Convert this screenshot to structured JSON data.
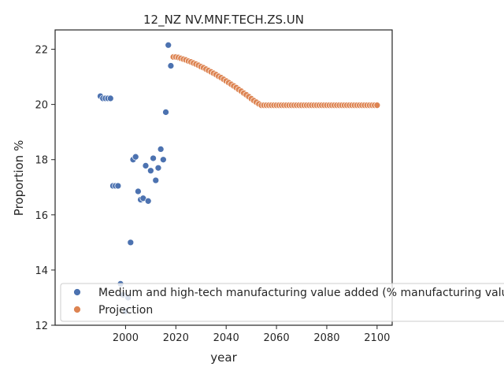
{
  "chart_data": {
    "type": "scatter",
    "title": "12_NZ NV.MNF.TECH.ZS.UN",
    "xlabel": "year",
    "ylabel": "Proportion %",
    "xlim": [
      1972,
      2106
    ],
    "ylim": [
      12,
      22.7
    ],
    "xticks": [
      "2000",
      "2020",
      "2040",
      "2060",
      "2080",
      "2100"
    ],
    "yticks": [
      "12",
      "14",
      "16",
      "18",
      "20",
      "22"
    ],
    "grid": false,
    "legend_position": "lower-right",
    "series": [
      {
        "name": "Medium and high-tech manufacturing value added (% manufacturing value added)",
        "color": "#4c72b0",
        "x": [
          1990,
          1991,
          1992,
          1993,
          1994,
          1995,
          1996,
          1997,
          1998,
          1999,
          2000,
          2001,
          2002,
          2003,
          2004,
          2005,
          2006,
          2007,
          2008,
          2009,
          2010,
          2011,
          2012,
          2013,
          2014,
          2015,
          2016,
          2017,
          2018,
          2019
        ],
        "y": [
          20.3,
          20.22,
          20.22,
          20.22,
          20.22,
          17.05,
          17.05,
          17.05,
          13.5,
          13.1,
          12.5,
          13.0,
          15.0,
          18.0,
          18.1,
          16.85,
          16.55,
          16.6,
          17.78,
          16.5,
          17.6,
          18.05,
          17.25,
          17.7,
          18.38,
          18.0,
          19.72,
          22.15,
          21.4,
          21.72
        ]
      },
      {
        "name": "Projection",
        "color": "#dd8452",
        "x": [
          2019,
          2020,
          2021,
          2022,
          2023,
          2024,
          2025,
          2026,
          2027,
          2028,
          2029,
          2030,
          2031,
          2032,
          2033,
          2034,
          2035,
          2036,
          2037,
          2038,
          2039,
          2040,
          2041,
          2042,
          2043,
          2044,
          2045,
          2046,
          2047,
          2048,
          2049,
          2050,
          2051,
          2052,
          2053,
          2054,
          2055,
          2056,
          2057,
          2058,
          2059,
          2060,
          2061,
          2062,
          2063,
          2064,
          2065,
          2066,
          2067,
          2068,
          2069,
          2070,
          2071,
          2072,
          2073,
          2074,
          2075,
          2076,
          2077,
          2078,
          2079,
          2080,
          2081,
          2082,
          2083,
          2084,
          2085,
          2086,
          2087,
          2088,
          2089,
          2090,
          2091,
          2092,
          2093,
          2094,
          2095,
          2096,
          2097,
          2098,
          2099,
          2100
        ],
        "y": [
          21.72,
          21.72,
          21.7,
          21.67,
          21.64,
          21.61,
          21.57,
          21.54,
          21.5,
          21.46,
          21.42,
          21.37,
          21.33,
          21.28,
          21.23,
          21.18,
          21.13,
          21.08,
          21.02,
          20.97,
          20.91,
          20.85,
          20.79,
          20.73,
          20.67,
          20.61,
          20.54,
          20.48,
          20.41,
          20.35,
          20.28,
          20.21,
          20.14,
          20.08,
          20.02,
          19.97,
          19.97,
          19.97,
          19.97,
          19.97,
          19.97,
          19.97,
          19.97,
          19.97,
          19.97,
          19.97,
          19.97,
          19.97,
          19.97,
          19.97,
          19.97,
          19.97,
          19.97,
          19.97,
          19.97,
          19.97,
          19.97,
          19.97,
          19.97,
          19.97,
          19.97,
          19.97,
          19.97,
          19.97,
          19.97,
          19.97,
          19.97,
          19.97,
          19.97,
          19.97,
          19.97,
          19.97,
          19.97,
          19.97,
          19.97,
          19.97,
          19.97,
          19.97,
          19.97,
          19.97,
          19.97,
          19.97
        ]
      }
    ]
  }
}
